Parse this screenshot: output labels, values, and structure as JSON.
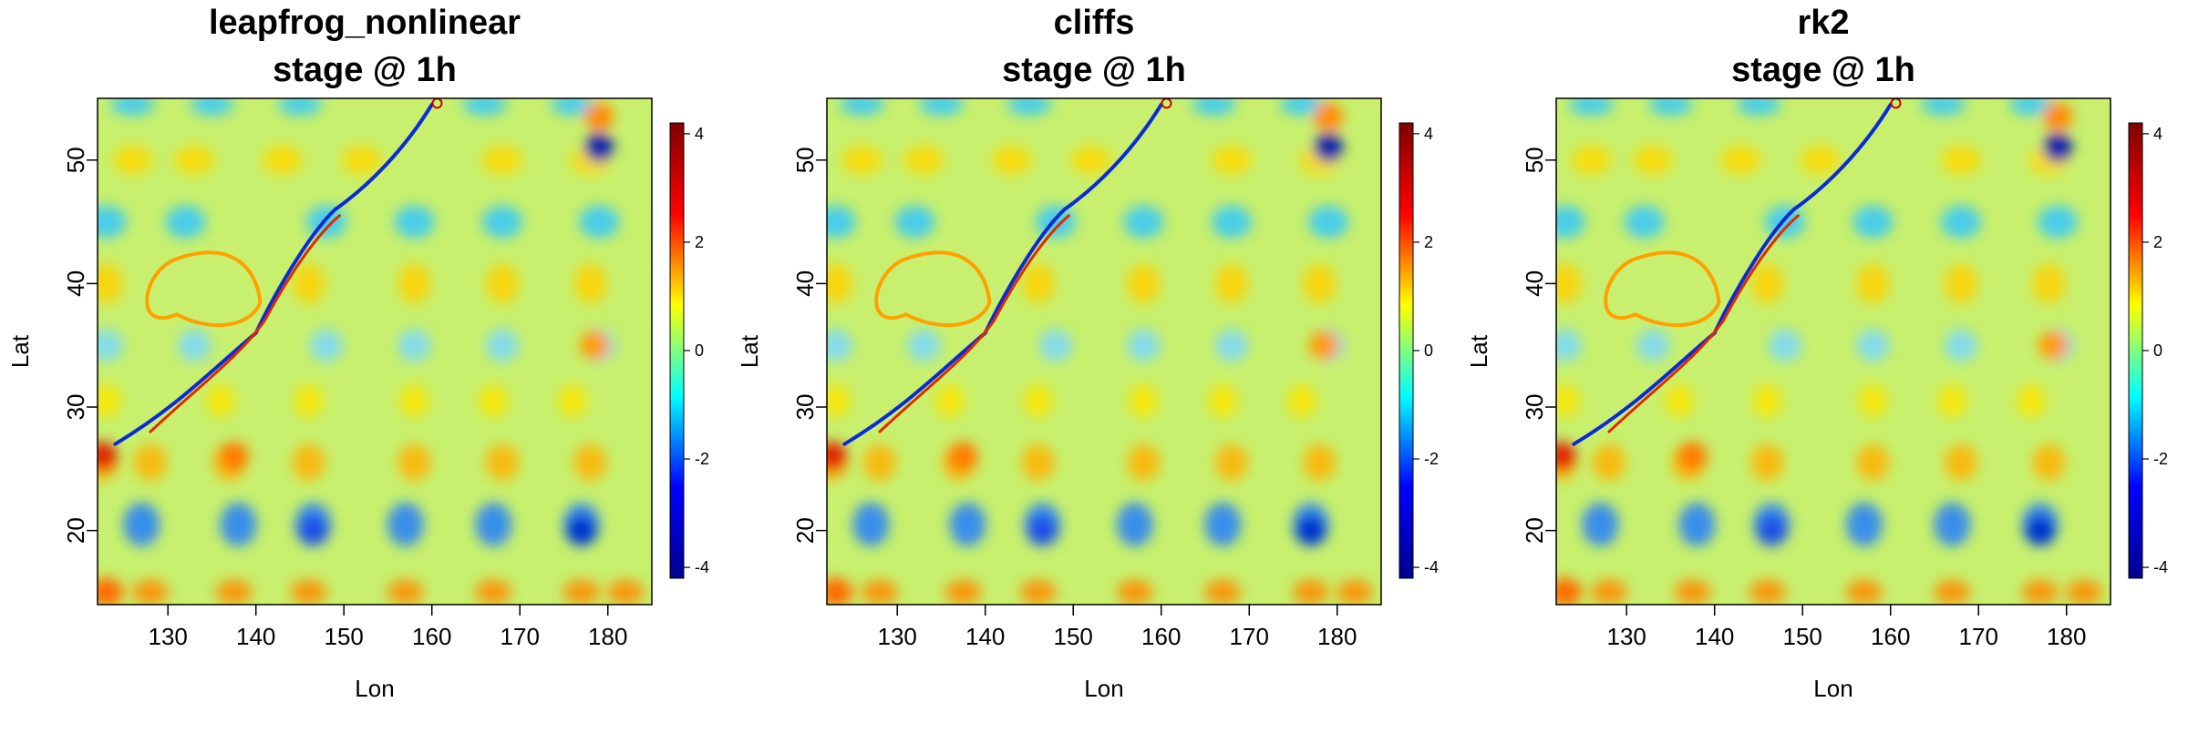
{
  "chart_data": [
    {
      "type": "heatmap",
      "title": "leapfrog_nonlinear",
      "subtitle": "stage @ 1h",
      "xlabel": "Lon",
      "ylabel": "Lat",
      "xlim": [
        122,
        185
      ],
      "ylim": [
        14,
        55
      ],
      "xticks": [
        130,
        140,
        150,
        160,
        170,
        180
      ],
      "yticks": [
        20,
        30,
        40,
        50
      ],
      "colorbar": {
        "ticks": [
          -4,
          -2,
          0,
          2,
          4
        ],
        "range": [
          -4.2,
          4.2
        ]
      }
    },
    {
      "type": "heatmap",
      "title": "cliffs",
      "subtitle": "stage @ 1h",
      "xlabel": "Lon",
      "ylabel": "Lat",
      "xlim": [
        122,
        185
      ],
      "ylim": [
        14,
        55
      ],
      "xticks": [
        130,
        140,
        150,
        160,
        170,
        180
      ],
      "yticks": [
        20,
        30,
        40,
        50
      ],
      "colorbar": {
        "ticks": [
          -4,
          -2,
          0,
          2,
          4
        ],
        "range": [
          -4.2,
          4.2
        ]
      }
    },
    {
      "type": "heatmap",
      "title": "rk2",
      "subtitle": "stage @ 1h",
      "xlabel": "Lon",
      "ylabel": "Lat",
      "xlim": [
        122,
        185
      ],
      "ylim": [
        14,
        55
      ],
      "xticks": [
        130,
        140,
        150,
        160,
        170,
        180
      ],
      "yticks": [
        20,
        30,
        40,
        50
      ],
      "colorbar": {
        "ticks": [
          -4,
          -2,
          0,
          2,
          4
        ],
        "range": [
          -4.2,
          4.2
        ]
      }
    }
  ],
  "colors": {
    "palette": [
      "#00008f",
      "#0000ff",
      "#00ffff",
      "#ffff00",
      "#ff0000",
      "#800000"
    ],
    "field_base": "#c8f06e"
  }
}
